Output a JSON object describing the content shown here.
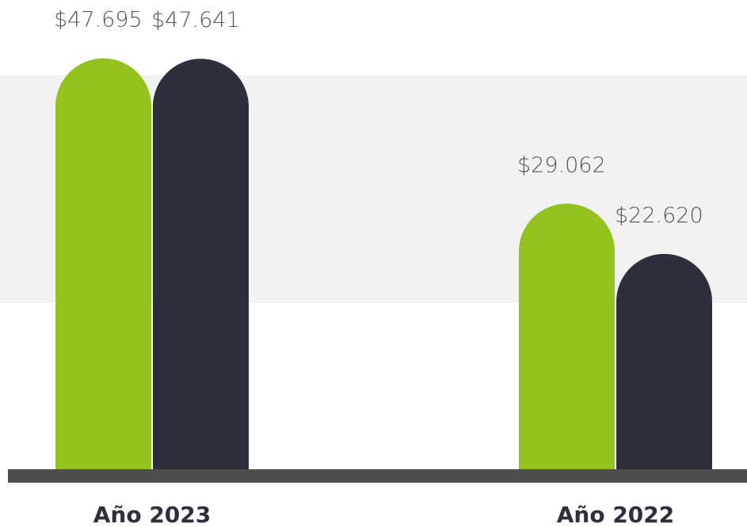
{
  "chart_data": {
    "type": "bar",
    "categories": [
      "Año 2023",
      "Año 2022"
    ],
    "series": [
      {
        "color": "#95c11f",
        "values": [
          47695,
          29062
        ],
        "value_labels": [
          "$47.695",
          "$29.062"
        ]
      },
      {
        "color": "#2d2f3a",
        "values": [
          47641,
          22620
        ],
        "value_labels": [
          "$47.641",
          "$22.620"
        ]
      }
    ],
    "ylim": [
      -5000,
      50000
    ]
  }
}
